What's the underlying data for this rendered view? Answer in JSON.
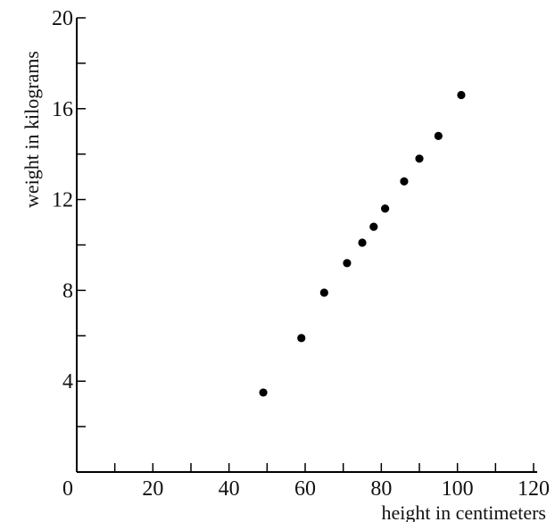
{
  "chart_data": {
    "type": "scatter",
    "title": "",
    "xlabel": "height in centimeters",
    "ylabel": "weight in kilograms",
    "xlim": [
      0,
      120
    ],
    "ylim": [
      0,
      20
    ],
    "x_ticks": [
      0,
      20,
      40,
      60,
      80,
      100,
      120
    ],
    "x_minor_ticks": [
      10,
      30,
      50,
      70,
      90,
      110
    ],
    "y_ticks": [
      4,
      8,
      12,
      16,
      20
    ],
    "y_minor_ticks": [
      2,
      6,
      10,
      14,
      18
    ],
    "grid": false,
    "legend": "none",
    "series": [
      {
        "points": [
          {
            "x": 49,
            "y": 3.5
          },
          {
            "x": 59,
            "y": 5.9
          },
          {
            "x": 65,
            "y": 7.9
          },
          {
            "x": 71,
            "y": 9.2
          },
          {
            "x": 75,
            "y": 10.1
          },
          {
            "x": 78,
            "y": 10.8
          },
          {
            "x": 81,
            "y": 11.6
          },
          {
            "x": 86,
            "y": 12.8
          },
          {
            "x": 90,
            "y": 13.8
          },
          {
            "x": 95,
            "y": 14.8
          },
          {
            "x": 101,
            "y": 16.6
          }
        ]
      }
    ]
  },
  "colors": {
    "marker": "#000000",
    "axis": "#000000"
  }
}
